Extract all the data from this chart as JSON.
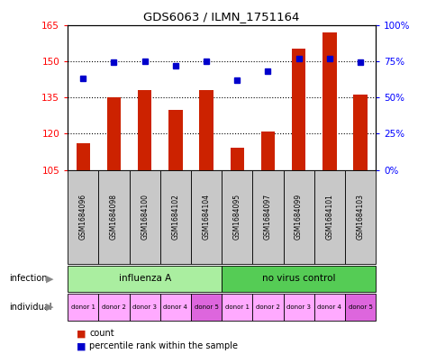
{
  "title": "GDS6063 / ILMN_1751164",
  "samples": [
    "GSM1684096",
    "GSM1684098",
    "GSM1684100",
    "GSM1684102",
    "GSM1684104",
    "GSM1684095",
    "GSM1684097",
    "GSM1684099",
    "GSM1684101",
    "GSM1684103"
  ],
  "counts": [
    116,
    135,
    138,
    130,
    138,
    114,
    121,
    155,
    162,
    136
  ],
  "percentiles": [
    63,
    74,
    75,
    72,
    75,
    62,
    68,
    77,
    77,
    74
  ],
  "ylim_left": [
    105,
    165
  ],
  "ylim_right": [
    0,
    100
  ],
  "yticks_left": [
    105,
    120,
    135,
    150,
    165
  ],
  "yticks_right": [
    0,
    25,
    50,
    75,
    100
  ],
  "ytick_labels_right": [
    "0%",
    "25%",
    "50%",
    "75%",
    "100%"
  ],
  "infection_groups": [
    {
      "label": "influenza A",
      "start": 0,
      "end": 5,
      "color": "#AAEEA0"
    },
    {
      "label": "no virus control",
      "start": 5,
      "end": 10,
      "color": "#55CC55"
    }
  ],
  "individuals": [
    "donor 1",
    "donor 2",
    "donor 3",
    "donor 4",
    "donor 5",
    "donor 1",
    "donor 2",
    "donor 3",
    "donor 4",
    "donor 5"
  ],
  "ind_colors": [
    "#FFAAFF",
    "#FFAAFF",
    "#FFAAFF",
    "#FFAAFF",
    "#DD66DD",
    "#FFAAFF",
    "#FFAAFF",
    "#FFAAFF",
    "#FFAAFF",
    "#DD66DD"
  ],
  "bar_color": "#CC2200",
  "dot_color": "#0000CC",
  "bar_baseline": 105,
  "background_color": "#FFFFFF",
  "legend_count_color": "#CC2200",
  "legend_dot_color": "#0000CC",
  "grid_dotted_at": [
    120,
    135,
    150
  ]
}
